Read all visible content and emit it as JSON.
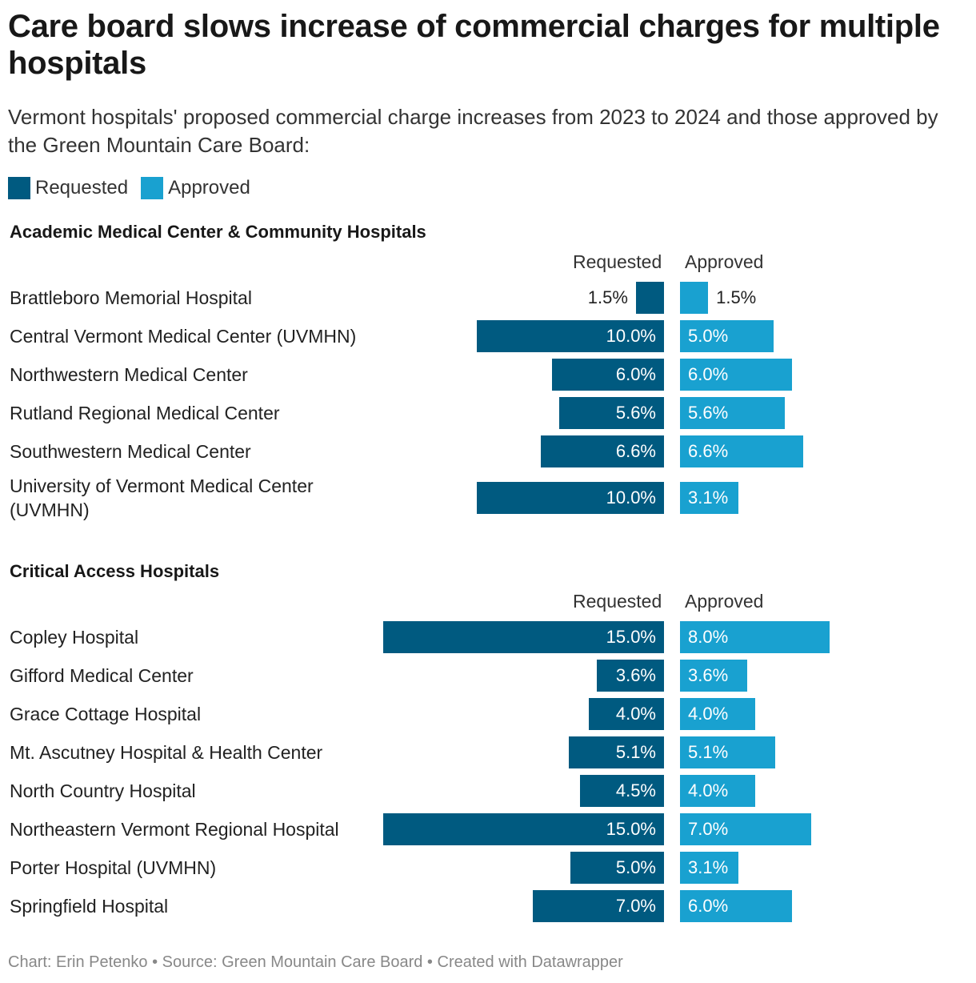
{
  "title": "Care board slows increase of commercial charges for multiple hospitals",
  "subtitle": "Vermont hospitals' proposed commercial charge increases from 2023 to 2024 and those approved by the Green Mountain Care Board:",
  "legend": [
    {
      "label": "Requested",
      "color": "#005a80"
    },
    {
      "label": "Approved",
      "color": "#19a1d0"
    }
  ],
  "footer": "Chart: Erin Petenko • Source: Green Mountain Care Board • Created with Datawrapper",
  "chart_data": {
    "type": "bar",
    "orientation": "horizontal, split (requested to the left, approved to the right)",
    "unit": "%",
    "series_names": [
      "Requested",
      "Approved"
    ],
    "colors": {
      "requested": "#005a80",
      "approved": "#19a1d0"
    },
    "groups": [
      {
        "name": "Academic Medical Center & Community Hospitals",
        "col_requested": "Requested",
        "col_approved": "Approved",
        "rows": [
          {
            "label": "Brattleboro Memorial Hospital",
            "requested": 1.5,
            "approved": 1.5,
            "requested_text": "1.5%",
            "approved_text": "1.5%"
          },
          {
            "label": "Central Vermont Medical Center (UVMHN)",
            "requested": 10.0,
            "approved": 5.0,
            "requested_text": "10.0%",
            "approved_text": "5.0%"
          },
          {
            "label": "Northwestern Medical Center",
            "requested": 6.0,
            "approved": 6.0,
            "requested_text": "6.0%",
            "approved_text": "6.0%"
          },
          {
            "label": "Rutland Regional Medical Center",
            "requested": 5.6,
            "approved": 5.6,
            "requested_text": "5.6%",
            "approved_text": "5.6%"
          },
          {
            "label": "Southwestern Medical Center",
            "requested": 6.6,
            "approved": 6.6,
            "requested_text": "6.6%",
            "approved_text": "6.6%"
          },
          {
            "label": "University of Vermont Medical Center (UVMHN)",
            "requested": 10.0,
            "approved": 3.1,
            "requested_text": "10.0%",
            "approved_text": "3.1%"
          }
        ]
      },
      {
        "name": "Critical Access Hospitals",
        "col_requested": "Requested",
        "col_approved": "Approved",
        "rows": [
          {
            "label": "Copley Hospital",
            "requested": 15.0,
            "approved": 8.0,
            "requested_text": "15.0%",
            "approved_text": "8.0%"
          },
          {
            "label": "Gifford Medical Center",
            "requested": 3.6,
            "approved": 3.6,
            "requested_text": "3.6%",
            "approved_text": "3.6%"
          },
          {
            "label": "Grace Cottage Hospital",
            "requested": 4.0,
            "approved": 4.0,
            "requested_text": "4.0%",
            "approved_text": "4.0%"
          },
          {
            "label": "Mt. Ascutney Hospital & Health Center",
            "requested": 5.1,
            "approved": 5.1,
            "requested_text": "5.1%",
            "approved_text": "5.1%"
          },
          {
            "label": "North Country Hospital",
            "requested": 4.5,
            "approved": 4.0,
            "requested_text": "4.5%",
            "approved_text": "4.0%"
          },
          {
            "label": "Northeastern Vermont Regional Hospital",
            "requested": 15.0,
            "approved": 7.0,
            "requested_text": "15.0%",
            "approved_text": "7.0%"
          },
          {
            "label": "Porter Hospital (UVMHN)",
            "requested": 5.0,
            "approved": 3.1,
            "requested_text": "5.0%",
            "approved_text": "3.1%"
          },
          {
            "label": "Springfield Hospital",
            "requested": 7.0,
            "approved": 6.0,
            "requested_text": "7.0%",
            "approved_text": "6.0%"
          }
        ]
      }
    ]
  }
}
